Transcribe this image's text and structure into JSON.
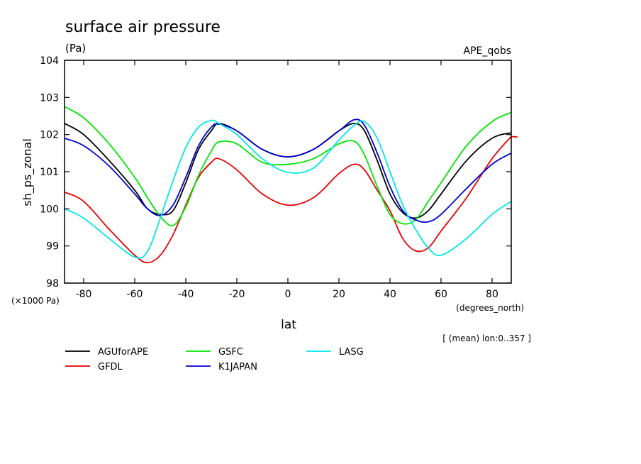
{
  "chart_data": {
    "type": "line",
    "title": "surface air pressure",
    "units": "(Pa)",
    "experiment": "APE_qobs",
    "xlabel": "lat",
    "x_units": "(degrees_north)",
    "ylabel": "sh_ps_zonal",
    "y_scale_note": "(×1000 Pa)",
    "subtitle_note": "[ (mean) lon:0..357 ]",
    "xlim": [
      -87.5,
      87.5
    ],
    "ylim": [
      98,
      104
    ],
    "x_ticks": [
      "-80",
      "-60",
      "-40",
      "-20",
      "0",
      "20",
      "40",
      "60",
      "80"
    ],
    "x_tick_values": [
      -80,
      -60,
      -40,
      -20,
      0,
      20,
      40,
      60,
      80
    ],
    "y_ticks": [
      "98",
      "99",
      "100",
      "101",
      "102",
      "103",
      "104"
    ],
    "y_tick_values": [
      98,
      99,
      100,
      101,
      102,
      103,
      104
    ],
    "x": [
      -87.5,
      -80,
      -70,
      -60,
      -55,
      -50,
      -45,
      -40,
      -35,
      -30,
      -27,
      -20,
      -10,
      0,
      10,
      20,
      26,
      30,
      35,
      40,
      45,
      50,
      55,
      60,
      70,
      80,
      87.5
    ],
    "series": [
      {
        "name": "AGUforAPE",
        "color": "#000000",
        "values": [
          102.3,
          102.0,
          101.3,
          100.5,
          100.0,
          99.85,
          99.95,
          100.7,
          101.6,
          102.1,
          102.3,
          102.1,
          101.6,
          101.4,
          101.6,
          102.1,
          102.3,
          102.1,
          101.3,
          100.4,
          99.9,
          99.75,
          99.95,
          100.4,
          101.3,
          101.9,
          102.05
        ]
      },
      {
        "name": "GFDL",
        "color": "#e60000",
        "values": [
          100.45,
          100.2,
          99.45,
          98.75,
          98.55,
          98.75,
          99.3,
          100.1,
          100.85,
          101.25,
          101.35,
          101.05,
          100.4,
          100.1,
          100.3,
          100.95,
          101.2,
          101.05,
          100.5,
          99.95,
          99.2,
          98.87,
          98.95,
          99.4,
          100.3,
          101.35,
          101.95
        ]
      },
      {
        "name": "GSFC",
        "color": "#00e600",
        "values": [
          102.75,
          102.45,
          101.75,
          100.85,
          100.3,
          99.8,
          99.55,
          100.05,
          100.9,
          101.55,
          101.8,
          101.75,
          101.25,
          101.2,
          101.35,
          101.75,
          101.82,
          101.45,
          100.6,
          99.85,
          99.6,
          99.7,
          100.2,
          100.7,
          101.7,
          102.35,
          102.6
        ]
      },
      {
        "name": "K1JAPAN",
        "color": "#0000d0",
        "values": [
          101.9,
          101.7,
          101.15,
          100.4,
          100.0,
          99.82,
          100.1,
          100.85,
          101.7,
          102.2,
          102.28,
          102.1,
          101.6,
          101.4,
          101.6,
          102.1,
          102.4,
          102.25,
          101.5,
          100.6,
          99.95,
          99.7,
          99.65,
          99.85,
          100.55,
          101.2,
          101.5
        ]
      },
      {
        "name": "LASG",
        "color": "#00e6e6",
        "values": [
          100.0,
          99.75,
          99.2,
          98.7,
          98.85,
          99.75,
          100.75,
          101.65,
          102.2,
          102.38,
          102.3,
          102.0,
          101.35,
          100.98,
          101.1,
          101.85,
          102.25,
          102.35,
          101.9,
          101.0,
          100.1,
          99.45,
          98.95,
          98.75,
          99.2,
          99.85,
          100.2
        ]
      }
    ],
    "legend": {
      "placement": "bottom",
      "rows": [
        [
          "AGUforAPE",
          "GSFC",
          "LASG"
        ],
        [
          "GFDL",
          "K1JAPAN"
        ]
      ]
    },
    "grid": false
  }
}
